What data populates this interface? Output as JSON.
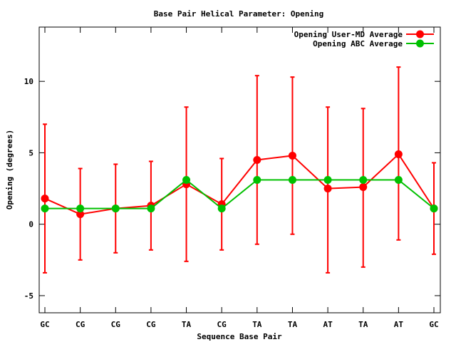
{
  "chart_data": {
    "type": "line",
    "title": "Base Pair Helical Parameter: Opening",
    "xlabel": "Sequence Base Pair",
    "ylabel": "Opening (degrees)",
    "categories": [
      "GC",
      "CG",
      "CG",
      "CG",
      "TA",
      "CG",
      "TA",
      "TA",
      "AT",
      "TA",
      "AT",
      "GC"
    ],
    "ylim": [
      -6.2,
      13.8
    ],
    "yticks": [
      -5,
      0,
      5,
      10
    ],
    "grid": false,
    "legend_position": "top-right",
    "series": [
      {
        "name": "Opening User-MD Average",
        "color": "#ff0000",
        "values": [
          1.8,
          0.7,
          1.1,
          1.3,
          2.8,
          1.4,
          4.5,
          4.8,
          2.5,
          2.6,
          4.9,
          1.1
        ],
        "error_low": [
          -3.4,
          -2.5,
          -2.0,
          -1.8,
          -2.6,
          -1.8,
          -1.4,
          -0.7,
          -3.4,
          -3.0,
          -1.1,
          -2.1
        ],
        "error_high": [
          7.0,
          3.9,
          4.2,
          4.4,
          8.2,
          4.6,
          10.4,
          10.3,
          8.2,
          8.1,
          11.0,
          4.3
        ]
      },
      {
        "name": "Opening ABC Average",
        "color": "#00c000",
        "values": [
          1.1,
          1.1,
          1.1,
          1.1,
          3.1,
          1.1,
          3.1,
          3.1,
          3.1,
          3.1,
          3.1,
          1.1
        ]
      }
    ]
  }
}
